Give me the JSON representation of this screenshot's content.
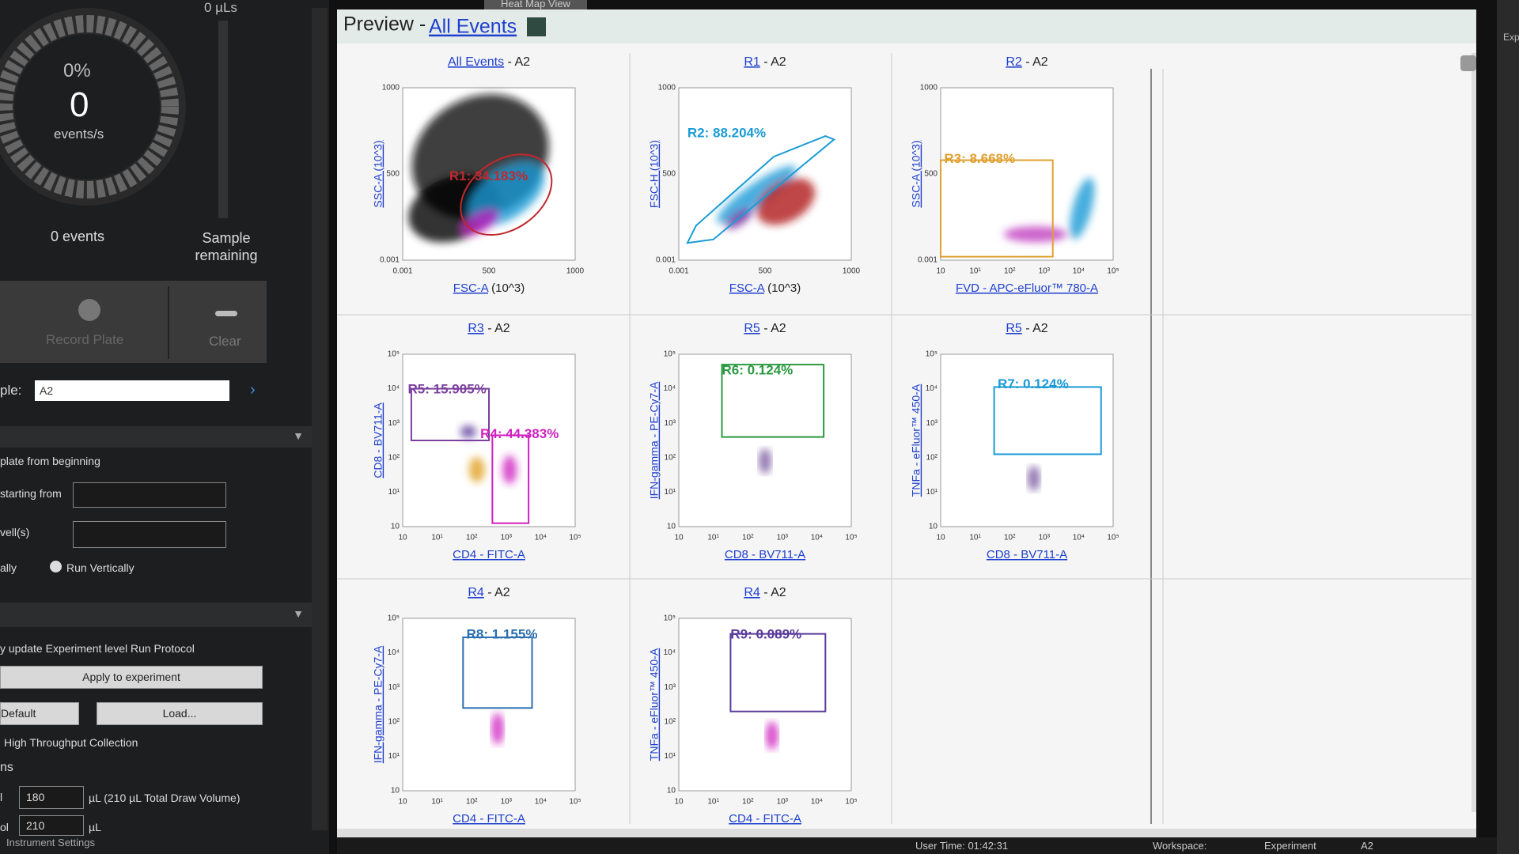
{
  "left_panel": {
    "volume": "0 µLs",
    "percent": "0%",
    "rate": "0",
    "rate_unit": "events/s",
    "events": "0 events",
    "sample_remaining": "Sample remaining",
    "record_plate": "Record Plate",
    "clear": "Clear",
    "sample_label": "ple:",
    "sample_value": "A2",
    "plate_from_beginning": "plate from beginning",
    "starting_from": "starting from",
    "wells": "vell(s)",
    "horizontally": "ally",
    "run_vertically": "Run Vertically",
    "update_protocol": "y update Experiment level Run Protocol",
    "apply": "Apply to experiment",
    "default": "Default",
    "load": "Load...",
    "htc": "High Throughput Collection",
    "section": "ns",
    "draw_label": "l",
    "draw_value": "180",
    "draw_unit": "µL (210 µL Total Draw Volume)",
    "vol_label": "ol",
    "vol_value": "210",
    "vol_unit": "µL",
    "instrument_settings": "Instrument Settings"
  },
  "tabs": [
    "Heat Map View"
  ],
  "preview": {
    "title": "Preview - ",
    "link": "All Events",
    "plots": [
      {
        "link": "All Events",
        "suffix": " - A2",
        "gates": [
          {
            "label": "R1: 34.183%",
            "color": "#c0282d"
          }
        ],
        "x_label": "FSC-A",
        "x_unit": " (10^3)",
        "y_label": "SSC-A (10^3)",
        "xticks": [
          "0.001",
          "500",
          "1000"
        ],
        "yticks": [
          "0.001",
          "500",
          "1000"
        ]
      },
      {
        "link": "R1",
        "suffix": " - A2",
        "gates": [
          {
            "label": "R2: 88.204%",
            "color": "#1a9bd7"
          }
        ],
        "x_label": "FSC-A",
        "x_unit": " (10^3)",
        "y_label": "FSC-H (10^3)",
        "xticks": [
          "0.001",
          "500",
          "1000"
        ],
        "yticks": [
          "0.001",
          "500",
          "1000"
        ]
      },
      {
        "link": "R2",
        "suffix": " - A2",
        "gates": [
          {
            "label": "R3: 8.668%",
            "color": "#e0a030"
          }
        ],
        "x_label": "FVD - APC-eFluor™ 780-A",
        "y_label": "SSC-A (10^3)",
        "xticks": [
          "10",
          "10¹",
          "10²",
          "10³",
          "10⁴",
          "10⁵"
        ],
        "yticks": [
          "0.001",
          "500",
          "1000"
        ]
      },
      {
        "link": "R3",
        "suffix": " - A2",
        "gates": [
          {
            "label": "R5: 15.905%",
            "color": "#7b3f9e"
          },
          {
            "label": "R4: 44.383%",
            "color": "#d020c0"
          }
        ],
        "x_label": "CD4 - FITC-A",
        "y_label": "CD8 - BV711-A",
        "xticks": [
          "10",
          "10¹",
          "10²",
          "10³",
          "10⁴",
          "10⁵"
        ],
        "yticks": [
          "10",
          "10¹",
          "10²",
          "10³",
          "10⁴",
          "10⁵"
        ]
      },
      {
        "link": "R5",
        "suffix": " - A2",
        "gates": [
          {
            "label": "R6: 0.124%",
            "color": "#2a9a40"
          }
        ],
        "x_label": "CD8 - BV711-A",
        "y_label": "IFN-gamma - PE-Cy7-A",
        "xticks": [
          "10",
          "10¹",
          "10²",
          "10³",
          "10⁴",
          "10⁵"
        ],
        "yticks": [
          "10",
          "10¹",
          "10²",
          "10³",
          "10⁴",
          "10⁵"
        ]
      },
      {
        "link": "R5",
        "suffix": " - A2",
        "gates": [
          {
            "label": "R7: 0.124%",
            "color": "#1a9bd7"
          }
        ],
        "x_label": "CD8 - BV711-A",
        "y_label": "TNFa - eFluor™ 450-A",
        "xticks": [
          "10",
          "10¹",
          "10²",
          "10³",
          "10⁴",
          "10⁵"
        ],
        "yticks": [
          "10",
          "10¹",
          "10²",
          "10³",
          "10⁴",
          "10⁵"
        ]
      },
      {
        "link": "R4",
        "suffix": " - A2",
        "gates": [
          {
            "label": "R8: 1.155%",
            "color": "#2a6fb0"
          }
        ],
        "x_label": "CD4 - FITC-A",
        "y_label": "IFN-gamma - PE-Cy7-A",
        "xticks": [
          "10",
          "10¹",
          "10²",
          "10³",
          "10⁴",
          "10⁵"
        ],
        "yticks": [
          "10",
          "10¹",
          "10²",
          "10³",
          "10⁴",
          "10⁵"
        ]
      },
      {
        "link": "R4",
        "suffix": " - A2",
        "gates": [
          {
            "label": "R9: 0.089%",
            "color": "#5a3a9a"
          }
        ],
        "x_label": "CD4 - FITC-A",
        "y_label": "TNFa - eFluor™ 450-A",
        "xticks": [
          "10",
          "10¹",
          "10²",
          "10³",
          "10⁴",
          "10⁵"
        ],
        "yticks": [
          "10",
          "10¹",
          "10²",
          "10³",
          "10⁴",
          "10⁵"
        ]
      }
    ]
  },
  "status": {
    "user_time": "User Time: 01:42:31",
    "workspace_label": "Workspace:",
    "workspace": "Experiment",
    "well": "A2"
  },
  "right_edge": {
    "label": "Exp"
  }
}
